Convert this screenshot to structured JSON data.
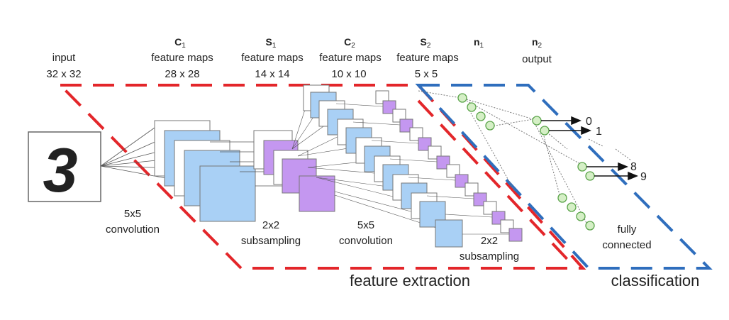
{
  "colors": {
    "red_dash": "#e3262a",
    "blue_dash": "#2f6ebd",
    "conv_map": "#a9d0f5",
    "sub_map": "#c497f0",
    "neuron": "#d5efc6",
    "neuron_stroke": "#5aa449"
  },
  "layers": {
    "input": {
      "name": "input",
      "size": "32 x 32"
    },
    "c1": {
      "name": "C",
      "sub": "1",
      "desc": "feature maps",
      "size": "28 x 28"
    },
    "s1": {
      "name": "S",
      "sub": "1",
      "desc": "feature maps",
      "size": "14 x 14"
    },
    "c2": {
      "name": "C",
      "sub": "2",
      "desc": "feature maps",
      "size": "10 x 10"
    },
    "s2": {
      "name": "S",
      "sub": "2",
      "desc": "feature maps",
      "size": "5 x 5"
    },
    "n1": {
      "name": "n",
      "sub": "1"
    },
    "n2": {
      "name": "n",
      "sub": "2",
      "desc": "output"
    }
  },
  "input_digit": "3",
  "operations": {
    "conv1": [
      "5x5",
      "convolution"
    ],
    "sub1": [
      "2x2",
      "subsampling"
    ],
    "conv2": [
      "5x5",
      "convolution"
    ],
    "sub2": [
      "2x2",
      "subsampling"
    ],
    "fc": [
      "fully",
      "connected"
    ]
  },
  "outputs": {
    "o0": "0",
    "o1": "1",
    "o8": "8",
    "o9": "9"
  },
  "sections": {
    "feature_extraction": "feature extraction",
    "classification": "classification"
  }
}
